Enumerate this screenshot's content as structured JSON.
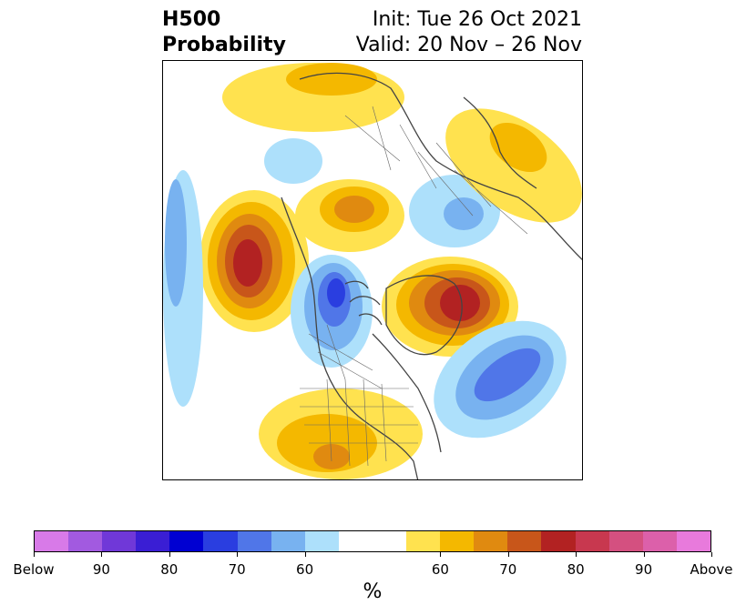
{
  "title": {
    "left_line1": "H500",
    "left_line2": "Probability",
    "right_line1": "Init: Tue 26 Oct 2021",
    "right_line2": "Valid: 20 Nov – 26 Nov"
  },
  "colorbar": {
    "colors": [
      "#d87ae8",
      "#a25ae0",
      "#7038d8",
      "#3a1ed4",
      "#0000d2",
      "#2a3ee0",
      "#5076e8",
      "#78b2f0",
      "#ade0fb",
      "#ffffff",
      "#ffffff",
      "#ffe24f",
      "#f4b800",
      "#e08a10",
      "#c8561a",
      "#b22222",
      "#c8384f",
      "#d45080",
      "#dc60aa",
      "#e87adc"
    ],
    "tick_labels": [
      "Below",
      "90",
      "80",
      "70",
      "60",
      "60",
      "70",
      "80",
      "90",
      "Above"
    ],
    "unit": "%"
  },
  "legend_colors": {
    "blue_light": "#ade0fb",
    "blue_mid": "#78b2f0",
    "blue_deep": "#5076e8",
    "blue_strong": "#2a3ee0",
    "yellow": "#ffe24f",
    "orange_light": "#f4b800",
    "orange": "#e08a10",
    "orange_dark": "#c8561a",
    "red": "#b22222"
  }
}
